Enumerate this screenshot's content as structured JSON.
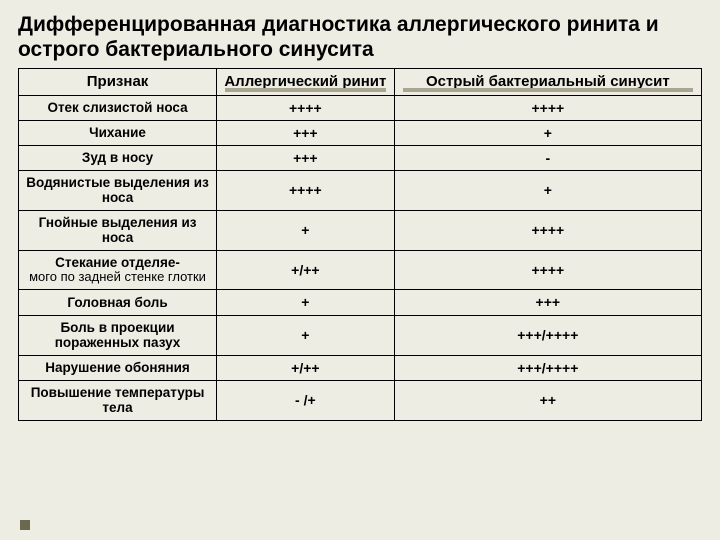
{
  "title": "Дифференцированная диагностика аллергического ринита и острого бактериального синусита",
  "table": {
    "columns": [
      "Признак",
      "Аллергический ринит",
      "Острый бактериальный синусит"
    ],
    "rows": [
      [
        "Отек слизистой носа",
        "++++",
        "++++"
      ],
      [
        "Чихание",
        "+++",
        "+"
      ],
      [
        "Зуд в носу",
        "+++",
        "-"
      ],
      [
        "Водянистые выделения из носа",
        "++++",
        "+"
      ],
      [
        "Гнойные выделения из носа",
        "+",
        "++++"
      ],
      [
        "Стекание отделяе-\nмого по задней стенке глотки",
        "+/++",
        "++++"
      ],
      [
        "Головная боль",
        "+",
        "+++"
      ],
      [
        "Боль в проекции пораженных пазух",
        "+",
        "+++/++++"
      ],
      [
        "Нарушение обоняния",
        "+/++",
        "+++/++++"
      ],
      [
        "Повышение температуры тела",
        "- /+",
        "++"
      ]
    ],
    "col_widths": [
      "29%",
      "26%",
      "45%"
    ],
    "background_color": "#eeede3",
    "title_fontsize": 21,
    "header_fontsize": 15,
    "cell_fontsize": 14,
    "feature_fontsize": 13.5,
    "border_color": "#000000",
    "shadow_color": "#a8a690",
    "bullet_color": "#6b6850"
  }
}
